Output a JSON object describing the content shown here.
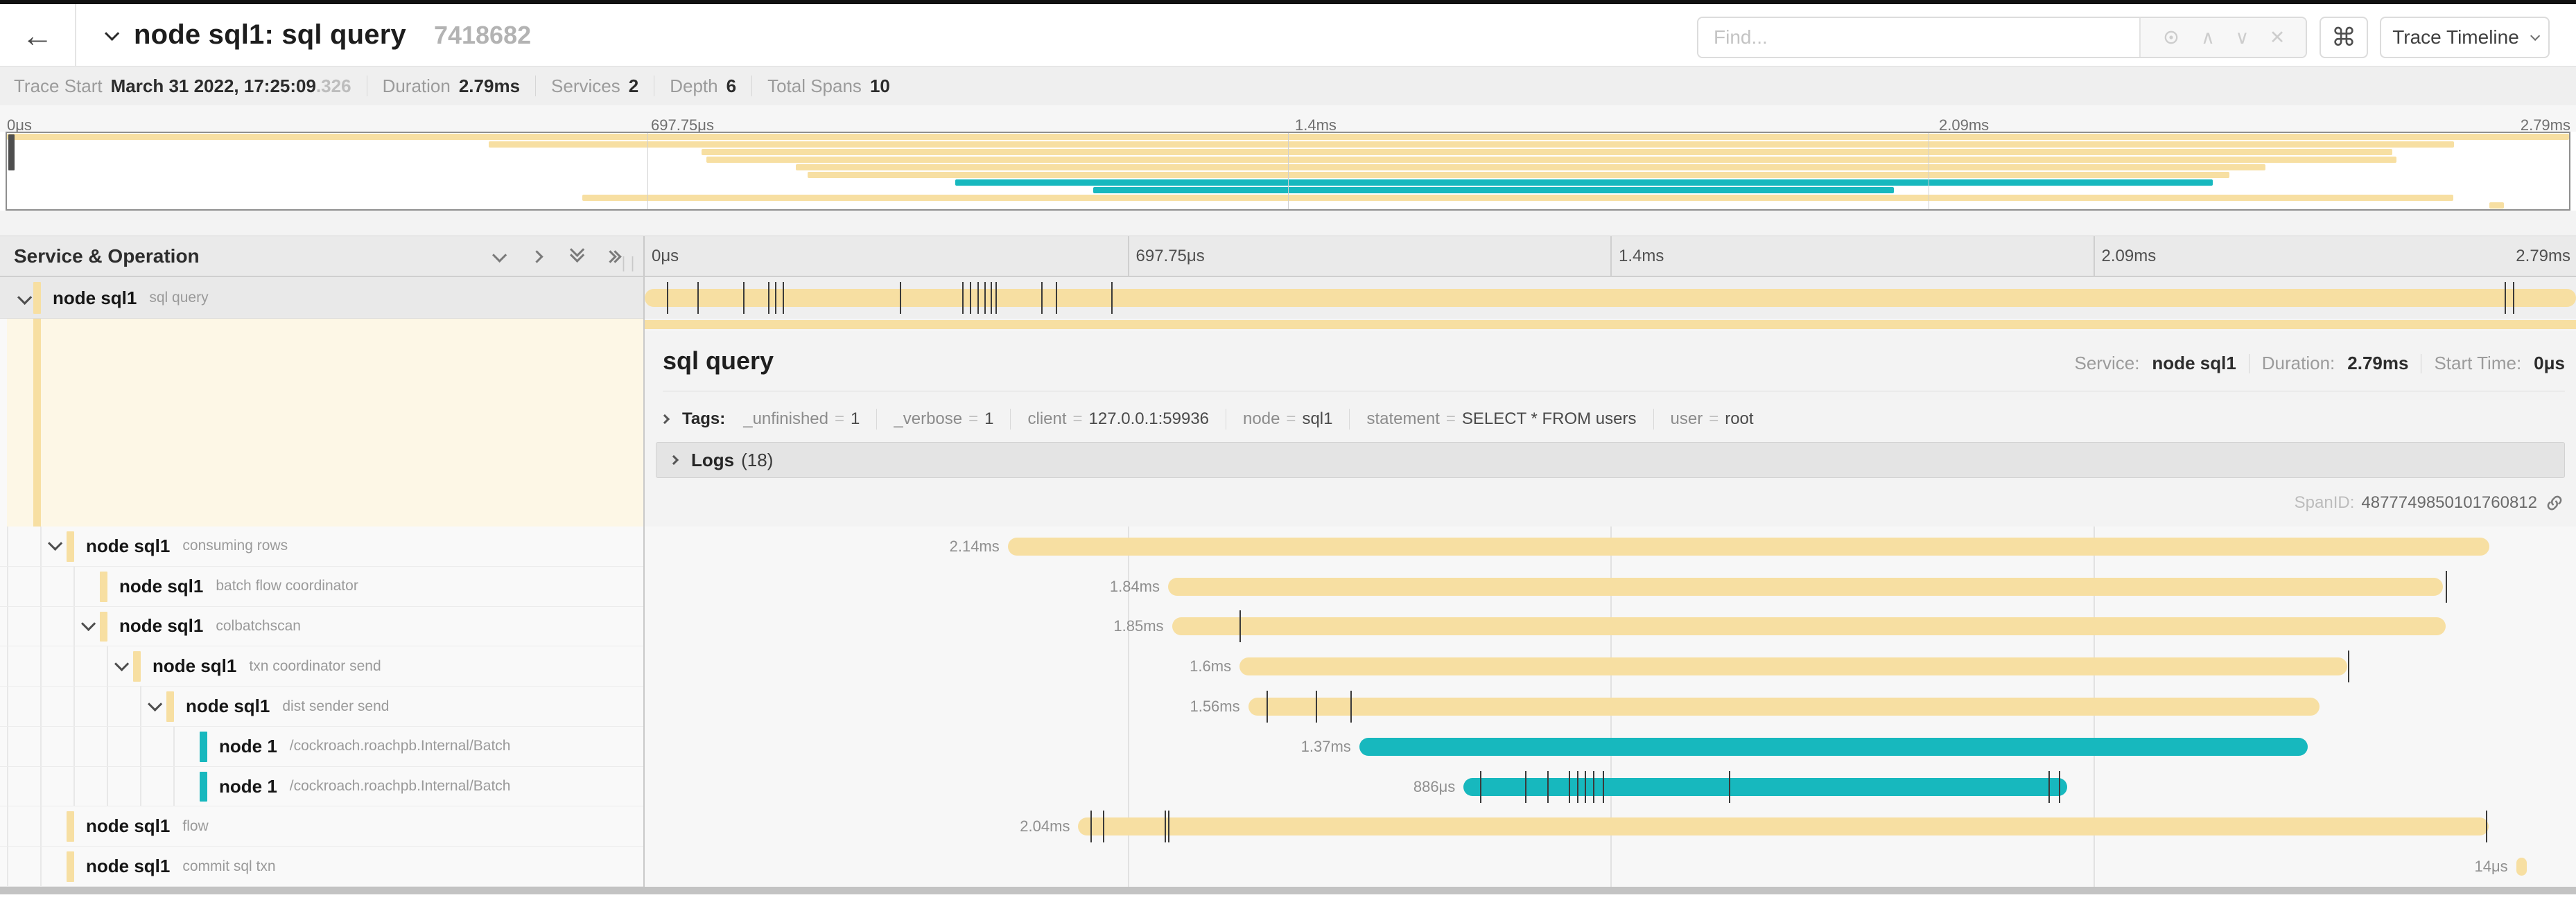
{
  "header": {
    "back_arrow": "←",
    "title": "node sql1: sql query",
    "trace_id": "7418682",
    "find_placeholder": "Find...",
    "find_icons": {
      "prev": "∧",
      "next": "∨",
      "clear": "✕"
    },
    "shortcut_icon": "⌘",
    "view_button": "Trace Timeline"
  },
  "summary": {
    "items": [
      {
        "label": "Trace Start",
        "value": "March 31 2022, 17:25:09",
        "dim": ".326"
      },
      {
        "label": "Duration",
        "value": "2.79ms",
        "dim": ""
      },
      {
        "label": "Services",
        "value": "2",
        "dim": ""
      },
      {
        "label": "Depth",
        "value": "6",
        "dim": ""
      },
      {
        "label": "Total Spans",
        "value": "10",
        "dim": ""
      }
    ]
  },
  "axis": {
    "ticks": [
      "0μs",
      "697.75μs",
      "1.4ms",
      "2.09ms",
      "2.79ms"
    ]
  },
  "panel": {
    "left_header": "Service & Operation"
  },
  "colors": {
    "tan": "#f7dfa2",
    "teal": "#17b8be"
  },
  "spans": [
    {
      "service": "node sql1",
      "operation": "sql query",
      "depth": 0,
      "color": "tan",
      "duration_label": "",
      "start": 0.0,
      "end": 1.0,
      "expandable": true,
      "selected": true,
      "ticks": [
        0.0115,
        0.0274,
        0.051,
        0.0638,
        0.0676,
        0.0714,
        0.132,
        0.1645,
        0.1684,
        0.1722,
        0.176,
        0.1792,
        0.1817,
        0.2053,
        0.213,
        0.2417,
        0.963,
        0.9675
      ]
    },
    {
      "service": "node sql1",
      "operation": "consuming rows",
      "depth": 1,
      "color": "tan",
      "duration_label": "2.14ms",
      "start": 0.188,
      "end": 0.955,
      "expandable": true,
      "selected": false,
      "ticks": []
    },
    {
      "service": "node sql1",
      "operation": "batch flow coordinator",
      "depth": 2,
      "color": "tan",
      "duration_label": "1.84ms",
      "start": 0.271,
      "end": 0.931,
      "expandable": false,
      "selected": false,
      "ticks": [
        0.9325
      ]
    },
    {
      "service": "node sql1",
      "operation": "colbatchscan",
      "depth": 2,
      "color": "tan",
      "duration_label": "1.85ms",
      "start": 0.273,
      "end": 0.9325,
      "expandable": true,
      "selected": false,
      "ticks": [
        0.308
      ]
    },
    {
      "service": "node sql1",
      "operation": "txn coordinator send",
      "depth": 3,
      "color": "tan",
      "duration_label": "1.6ms",
      "start": 0.308,
      "end": 0.8814,
      "expandable": true,
      "selected": false,
      "ticks": [
        0.882
      ]
    },
    {
      "service": "node sql1",
      "operation": "dist sender send",
      "depth": 4,
      "color": "tan",
      "duration_label": "1.56ms",
      "start": 0.3125,
      "end": 0.8673,
      "expandable": true,
      "selected": false,
      "ticks": [
        0.322,
        0.3476,
        0.3655
      ]
    },
    {
      "service": "node 1",
      "operation": "/cockroach.roachpb.Internal/Batch",
      "depth": 5,
      "color": "teal",
      "duration_label": "1.37ms",
      "start": 0.37,
      "end": 0.861,
      "expandable": false,
      "selected": false,
      "ticks": []
    },
    {
      "service": "node 1",
      "operation": "/cockroach.roachpb.Internal/Batch",
      "depth": 5,
      "color": "teal",
      "duration_label": "886μs",
      "start": 0.424,
      "end": 0.7366,
      "expandable": false,
      "selected": false,
      "ticks": [
        0.4324,
        0.456,
        0.4675,
        0.4783,
        0.4828,
        0.4866,
        0.4911,
        0.496,
        0.5612,
        0.727,
        0.7321
      ]
    },
    {
      "service": "node sql1",
      "operation": "flow",
      "depth": 1,
      "color": "tan",
      "duration_label": "2.04ms",
      "start": 0.2245,
      "end": 0.9547,
      "expandable": false,
      "selected": false,
      "ticks": [
        0.2309,
        0.2372,
        0.2691,
        0.271,
        0.9534
      ]
    },
    {
      "service": "node sql1",
      "operation": "commit sql txn",
      "depth": 1,
      "color": "tan",
      "duration_label": "14μs",
      "start": 0.969,
      "end": 0.9745,
      "expandable": false,
      "selected": false,
      "ticks": []
    }
  ],
  "detail": {
    "title": "sql query",
    "service_label": "Service:",
    "service": "node sql1",
    "duration_label": "Duration:",
    "duration": "2.79ms",
    "start_label": "Start Time:",
    "start": "0μs",
    "tags_label": "Tags:",
    "tags": [
      {
        "key": "_unfinished",
        "value": "1"
      },
      {
        "key": "_verbose",
        "value": "1"
      },
      {
        "key": "client",
        "value": "127.0.0.1:59936"
      },
      {
        "key": "node",
        "value": "sql1"
      },
      {
        "key": "statement",
        "value": "SELECT * FROM users"
      },
      {
        "key": "user",
        "value": "root"
      }
    ],
    "logs_label": "Logs",
    "logs_count": "(18)",
    "spanid_label": "SpanID:",
    "spanid": "4877749850101760812"
  }
}
